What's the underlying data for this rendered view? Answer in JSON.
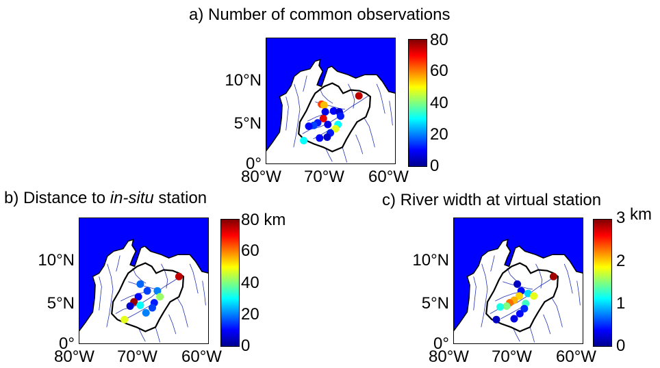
{
  "panels": [
    {
      "id": "a",
      "title": "a) Number of common observations",
      "colorbar": {
        "ticks": [
          "80",
          "60",
          "40",
          "20",
          "0"
        ],
        "unit": ""
      },
      "lat_labels": [
        "10°N",
        "5°N",
        "0°"
      ],
      "lon_labels": [
        "80°W",
        "70°W",
        "60°W"
      ],
      "stations": [
        {
          "lon": -71.2,
          "lat": 7.1,
          "value": 65
        },
        {
          "lon": -70.8,
          "lat": 7.0,
          "value": 55
        },
        {
          "lon": -65.3,
          "lat": 8.1,
          "value": 75
        },
        {
          "lon": -70.6,
          "lat": 6.2,
          "value": 8
        },
        {
          "lon": -69.3,
          "lat": 6.3,
          "value": 10
        },
        {
          "lon": -68.4,
          "lat": 6.2,
          "value": 6
        },
        {
          "lon": -68.2,
          "lat": 5.7,
          "value": 12
        },
        {
          "lon": -70.9,
          "lat": 5.4,
          "value": 72
        },
        {
          "lon": -71.8,
          "lat": 4.9,
          "value": 12
        },
        {
          "lon": -72.4,
          "lat": 4.6,
          "value": 15
        },
        {
          "lon": -73.2,
          "lat": 4.5,
          "value": 10
        },
        {
          "lon": -70.2,
          "lat": 4.7,
          "value": 8
        },
        {
          "lon": -68.6,
          "lat": 4.7,
          "value": 30
        },
        {
          "lon": -69.0,
          "lat": 4.2,
          "value": 48
        },
        {
          "lon": -69.8,
          "lat": 3.7,
          "value": 12
        },
        {
          "lon": -70.3,
          "lat": 3.2,
          "value": 6
        },
        {
          "lon": -71.5,
          "lat": 3.1,
          "value": 10
        },
        {
          "lon": -74.0,
          "lat": 2.8,
          "value": 30
        }
      ]
    },
    {
      "id": "b",
      "title_main": "b) Distance to ",
      "title_italic": "in-situ",
      "title_tail": " station",
      "colorbar": {
        "ticks": [
          "80",
          "60",
          "40",
          "20",
          "0"
        ],
        "unit": "km"
      },
      "lat_labels": [
        "10°N",
        "5°N",
        "0°"
      ],
      "lon_labels": [
        "80°W",
        "70°W",
        "60°W"
      ],
      "stations": [
        {
          "lon": -64.2,
          "lat": 8.0,
          "value": 75
        },
        {
          "lon": -70.3,
          "lat": 7.1,
          "value": 18
        },
        {
          "lon": -69.2,
          "lat": 6.3,
          "value": 15
        },
        {
          "lon": -67.6,
          "lat": 6.3,
          "value": 20
        },
        {
          "lon": -67.2,
          "lat": 5.6,
          "value": 42
        },
        {
          "lon": -70.6,
          "lat": 5.6,
          "value": 10
        },
        {
          "lon": -71.3,
          "lat": 5.0,
          "value": 78
        },
        {
          "lon": -71.9,
          "lat": 4.5,
          "value": 6
        },
        {
          "lon": -70.3,
          "lat": 4.6,
          "value": 30
        },
        {
          "lon": -68.1,
          "lat": 4.9,
          "value": 12
        },
        {
          "lon": -68.4,
          "lat": 4.3,
          "value": 15
        },
        {
          "lon": -69.4,
          "lat": 3.7,
          "value": 20
        },
        {
          "lon": -72.8,
          "lat": 2.9,
          "value": 48
        }
      ]
    },
    {
      "id": "c",
      "title": "c) River width at virtual station",
      "colorbar": {
        "ticks": [
          "3",
          "2",
          "1",
          "0"
        ],
        "unit": "km"
      },
      "lat_labels": [
        "10°N",
        "5°N",
        "0°"
      ],
      "lon_labels": [
        "80°W",
        "70°W",
        "60°W"
      ],
      "stations": [
        {
          "lon": -64.2,
          "lat": 8.0,
          "value": 2.9
        },
        {
          "lon": -69.9,
          "lat": 7.1,
          "value": 0.2
        },
        {
          "lon": -69.3,
          "lat": 6.3,
          "value": 0.4
        },
        {
          "lon": -68.2,
          "lat": 6.0,
          "value": 1.0
        },
        {
          "lon": -67.3,
          "lat": 5.7,
          "value": 1.8
        },
        {
          "lon": -69.6,
          "lat": 5.7,
          "value": 2.0
        },
        {
          "lon": -70.4,
          "lat": 5.2,
          "value": 2.1
        },
        {
          "lon": -71.1,
          "lat": 4.9,
          "value": 2.3
        },
        {
          "lon": -71.6,
          "lat": 4.5,
          "value": 1.5
        },
        {
          "lon": -72.6,
          "lat": 4.4,
          "value": 1.2
        },
        {
          "lon": -68.6,
          "lat": 4.8,
          "value": 1.3
        },
        {
          "lon": -68.8,
          "lat": 4.2,
          "value": 0.5
        },
        {
          "lon": -69.5,
          "lat": 3.6,
          "value": 0.4
        },
        {
          "lon": -70.4,
          "lat": 3.0,
          "value": 0.3
        },
        {
          "lon": -73.2,
          "lat": 2.9,
          "value": 0.2
        }
      ]
    }
  ],
  "colors": {
    "ocean": "#0000ff",
    "land": "#ffffff",
    "river": "#1f2fb5",
    "basin": "#000000"
  }
}
